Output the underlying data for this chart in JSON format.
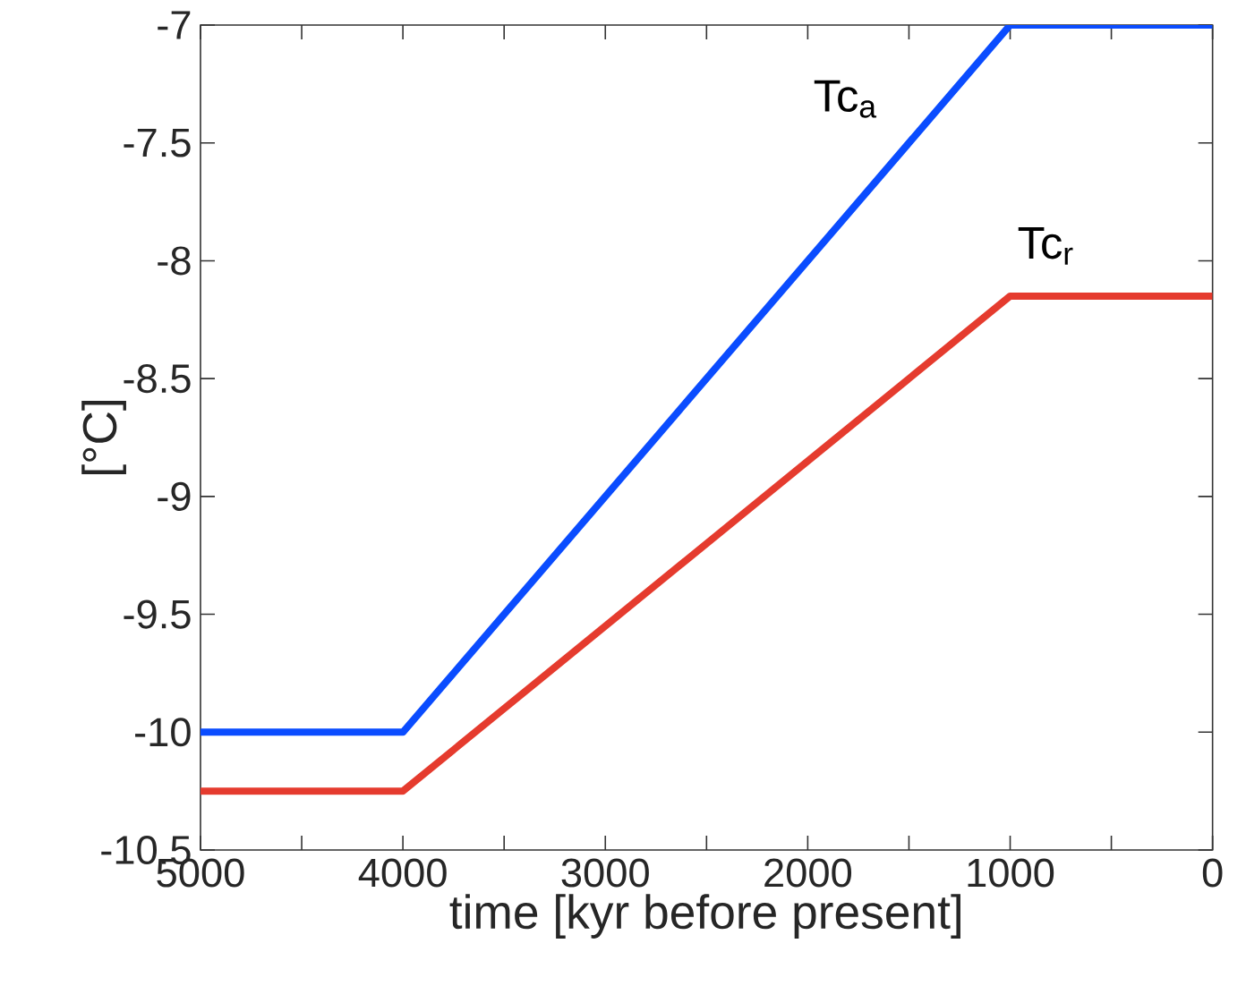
{
  "chart_data": {
    "type": "line",
    "xlabel": "time [kyr before present]",
    "ylabel": "[°C]",
    "x": [
      5000,
      4000,
      1000,
      0
    ],
    "series": [
      {
        "name": "Tc$_{a}$",
        "color": "#0a4cff",
        "values": [
          -10,
          -10,
          -7,
          -7
        ]
      },
      {
        "name": "Tc$_{r}$",
        "color": "#e53b2e",
        "values": [
          -10.25,
          -10.25,
          -8.15,
          -8.15
        ]
      }
    ],
    "xlim": [
      5000,
      0
    ],
    "xticks": [
      5000,
      {
        "value": 4500,
        "label": null
      },
      4000,
      {
        "value": 3500,
        "label": null
      },
      3000,
      {
        "value": 2500,
        "label": null
      },
      2000,
      {
        "value": 1500,
        "label": null
      },
      1000,
      {
        "value": 500,
        "label": null
      },
      0
    ],
    "ylim": [
      -10.5,
      -7
    ],
    "yticks": [
      -10.5,
      -10,
      -9.5,
      -9,
      -8.5,
      -8,
      -7.5,
      -7
    ],
    "grid": false,
    "marker": "none",
    "line_style": "solid"
  }
}
